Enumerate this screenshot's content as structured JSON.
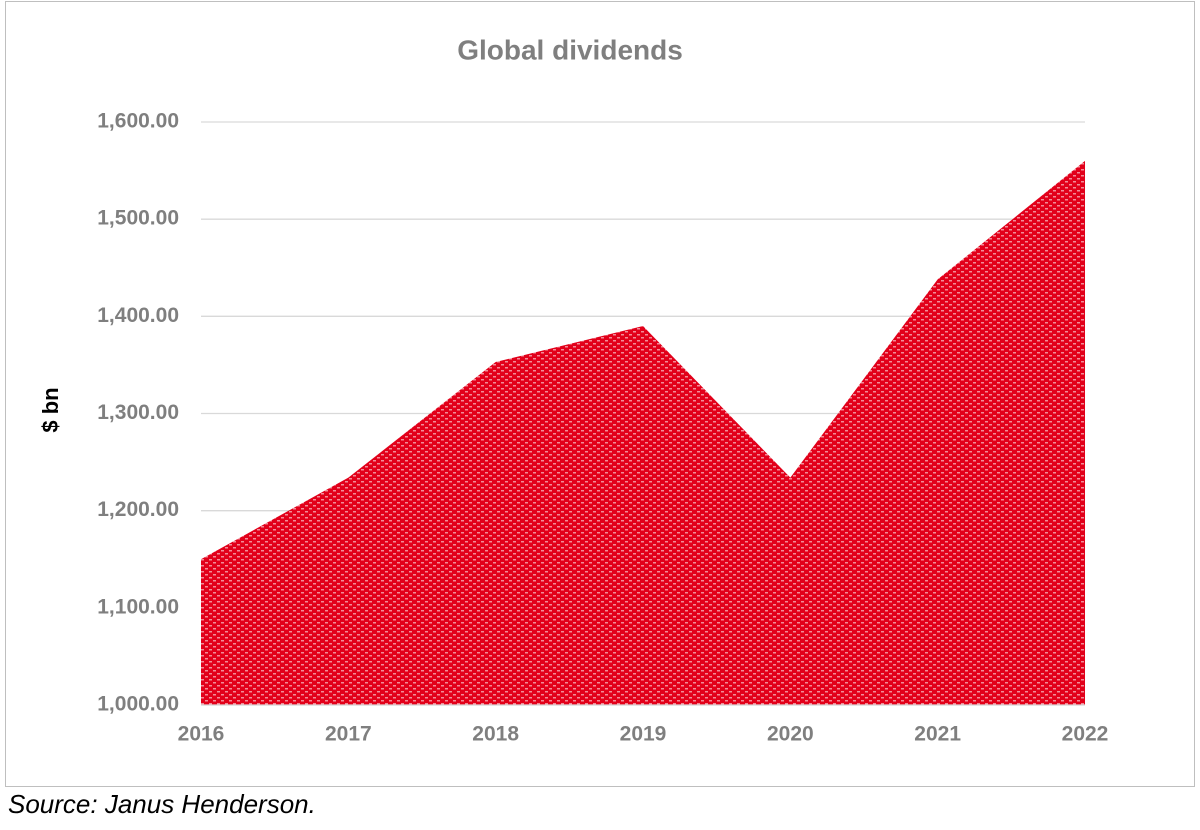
{
  "chart_data": {
    "type": "area",
    "title": "Global dividends",
    "y_label": "$ bn",
    "categories": [
      "2016",
      "2017",
      "2018",
      "2019",
      "2020",
      "2021",
      "2022"
    ],
    "values": [
      1150,
      1234,
      1353,
      1390,
      1234,
      1438,
      1560
    ],
    "color": "#e2001a",
    "ylim": [
      1000,
      1600
    ],
    "yticks": [
      {
        "value": 1000,
        "label": "1,000.00"
      },
      {
        "value": 1100,
        "label": "1,100.00"
      },
      {
        "value": 1200,
        "label": "1,200.00"
      },
      {
        "value": 1300,
        "label": "1,300.00"
      },
      {
        "value": 1400,
        "label": "1,400.00"
      },
      {
        "value": 1500,
        "label": "1,500.00"
      },
      {
        "value": 1600,
        "label": "1,600.00"
      }
    ],
    "grid": true
  },
  "source": "Source: Janus Henderson."
}
